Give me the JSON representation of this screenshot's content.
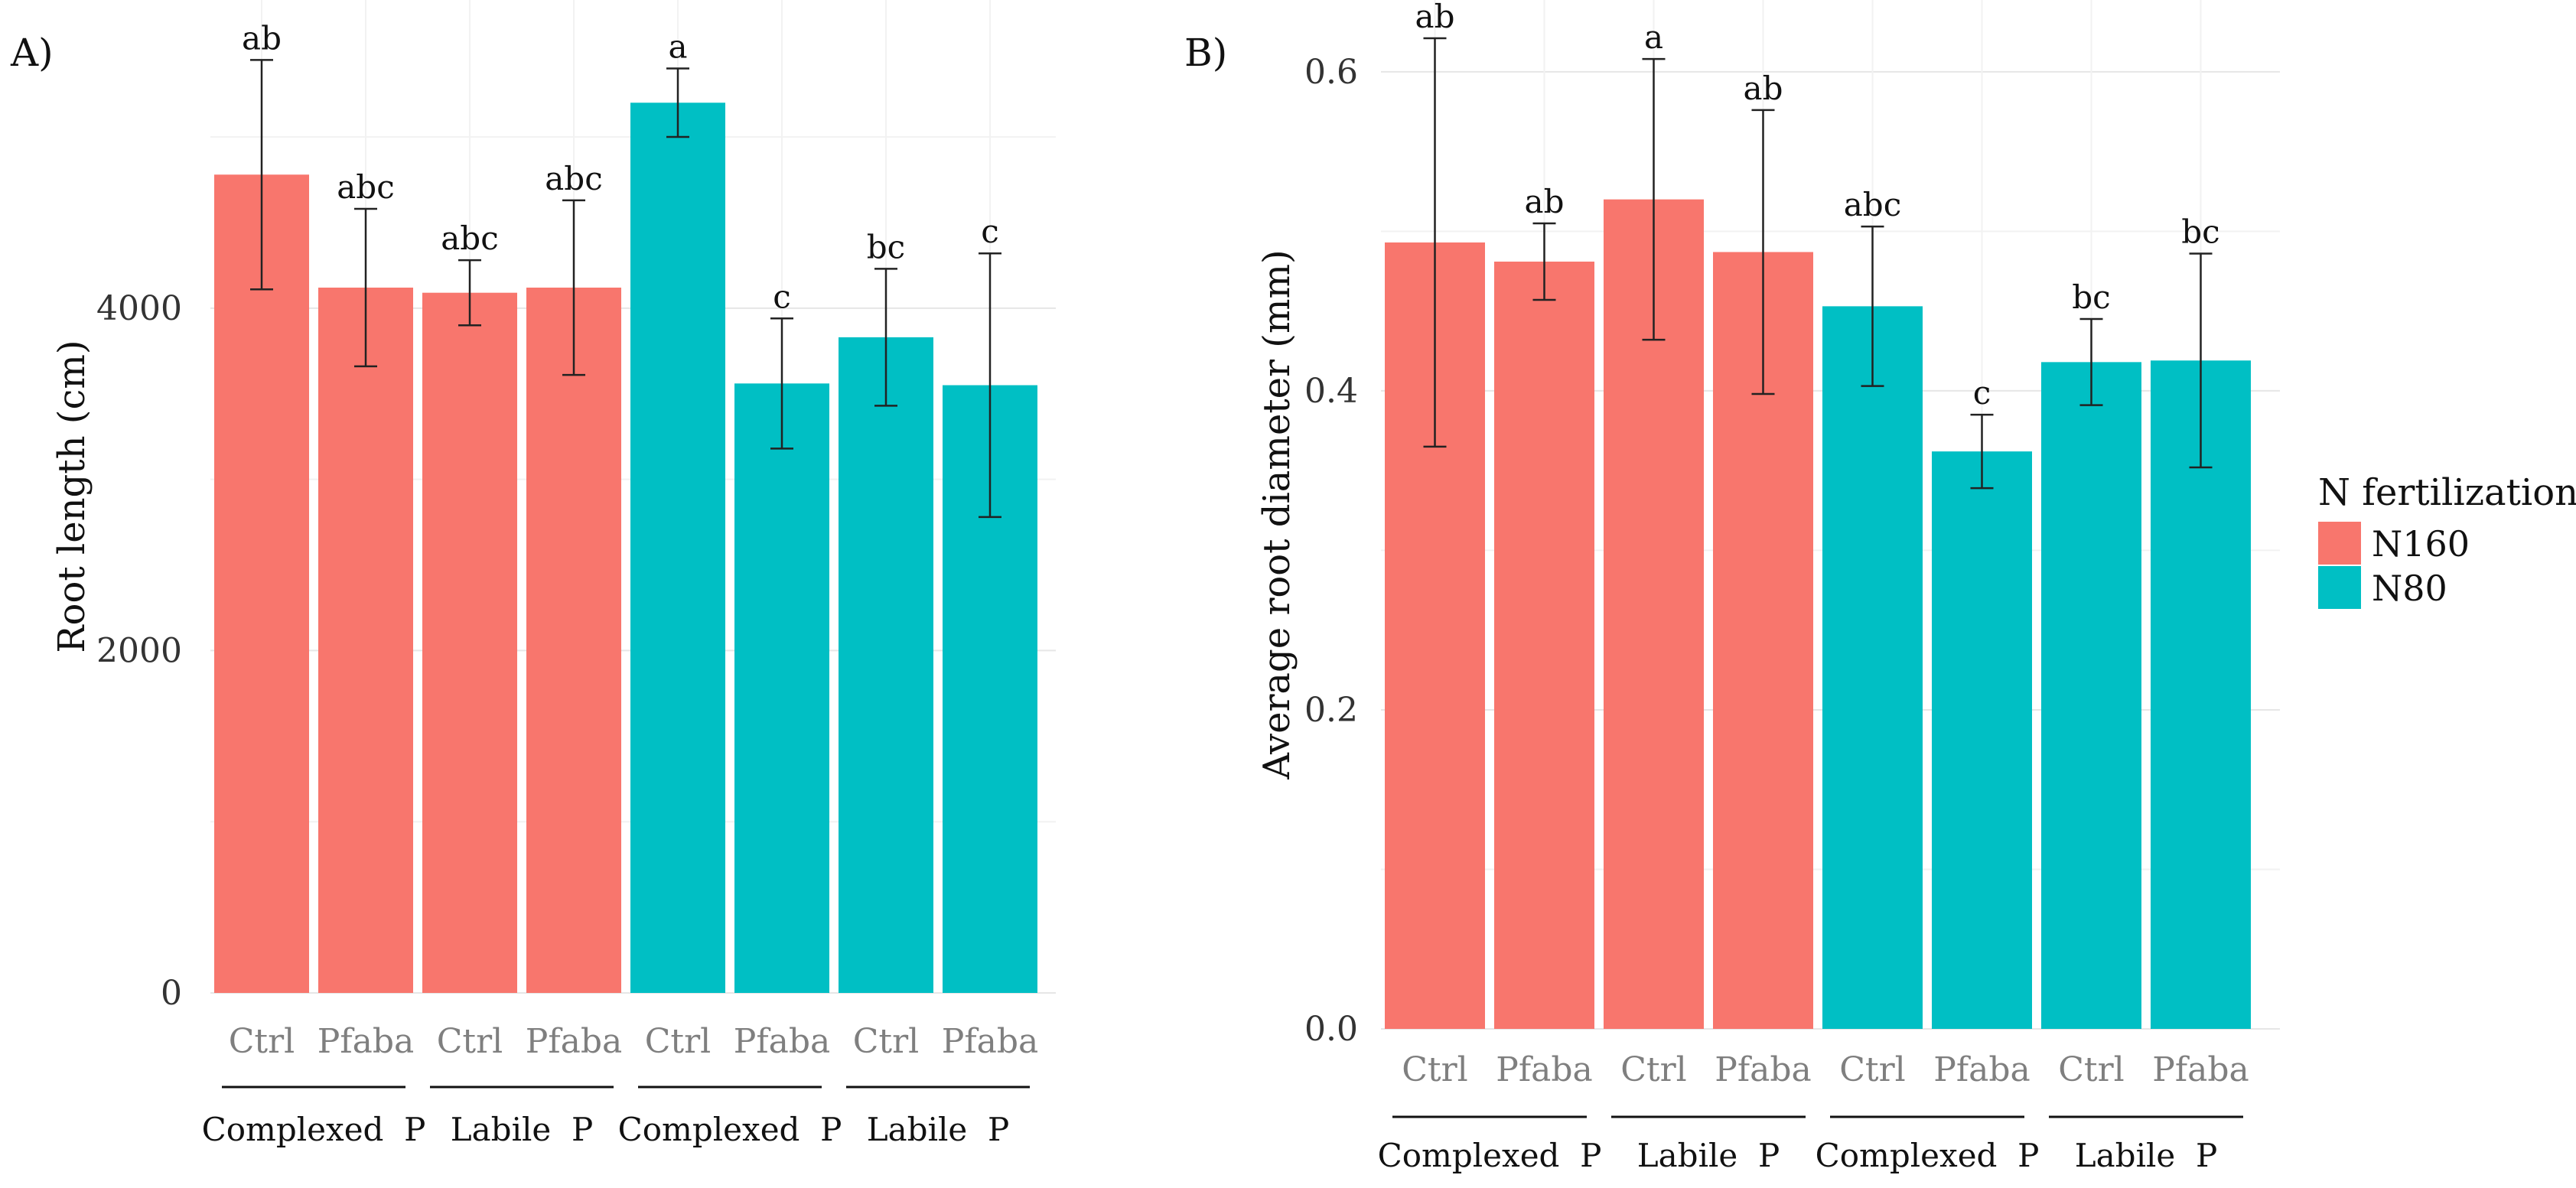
{
  "chart_data": [
    {
      "type": "bar",
      "panel_label": "A)",
      "ylabel": "Root length (cm)",
      "ylim": [
        0,
        5800
      ],
      "yticks": [
        0,
        2000,
        4000
      ],
      "x_tick_labels": [
        "Ctrl",
        "Pfaba",
        "Ctrl",
        "Pfaba",
        "Ctrl",
        "Pfaba",
        "Ctrl",
        "Pfaba"
      ],
      "group_labels": [
        "Complexed  P",
        "Labile  P",
        "Complexed  P",
        "Labile  P"
      ],
      "fertilization": [
        "N160",
        "N160",
        "N160",
        "N160",
        "N80",
        "N80",
        "N80",
        "N80"
      ],
      "values": [
        4780,
        4120,
        4090,
        4120,
        5200,
        3560,
        3830,
        3550
      ],
      "errors": [
        670,
        460,
        190,
        510,
        200,
        380,
        400,
        770
      ],
      "significance": [
        "ab",
        "abc",
        "abc",
        "abc",
        "a",
        "c",
        "bc",
        "c"
      ]
    },
    {
      "type": "bar",
      "panel_label": "B)",
      "ylabel": "Average root diameter (mm)",
      "ylim": [
        0,
        0.645
      ],
      "yticks": [
        "0.0",
        "0.2",
        "0.4",
        "0.6"
      ],
      "x_tick_labels": [
        "Ctrl",
        "Pfaba",
        "Ctrl",
        "Pfaba",
        "Ctrl",
        "Pfaba",
        "Ctrl",
        "Pfaba"
      ],
      "group_labels": [
        "Complexed  P",
        "Labile  P",
        "Complexed  P",
        "Labile  P"
      ],
      "fertilization": [
        "N160",
        "N160",
        "N160",
        "N160",
        "N80",
        "N80",
        "N80",
        "N80"
      ],
      "values": [
        0.493,
        0.481,
        0.52,
        0.487,
        0.453,
        0.362,
        0.418,
        0.419
      ],
      "errors": [
        0.128,
        0.024,
        0.088,
        0.089,
        0.05,
        0.023,
        0.027,
        0.067
      ],
      "significance": [
        "ab",
        "ab",
        "a",
        "ab",
        "abc",
        "c",
        "bc",
        "bc"
      ]
    }
  ],
  "legend": {
    "title": "N fertilization",
    "entries": [
      {
        "label": "N160",
        "color": "#F8766D"
      },
      {
        "label": "N80",
        "color": "#00BFC4"
      }
    ]
  },
  "colors": {
    "N160": "#F8766D",
    "N80": "#00BFC4"
  }
}
